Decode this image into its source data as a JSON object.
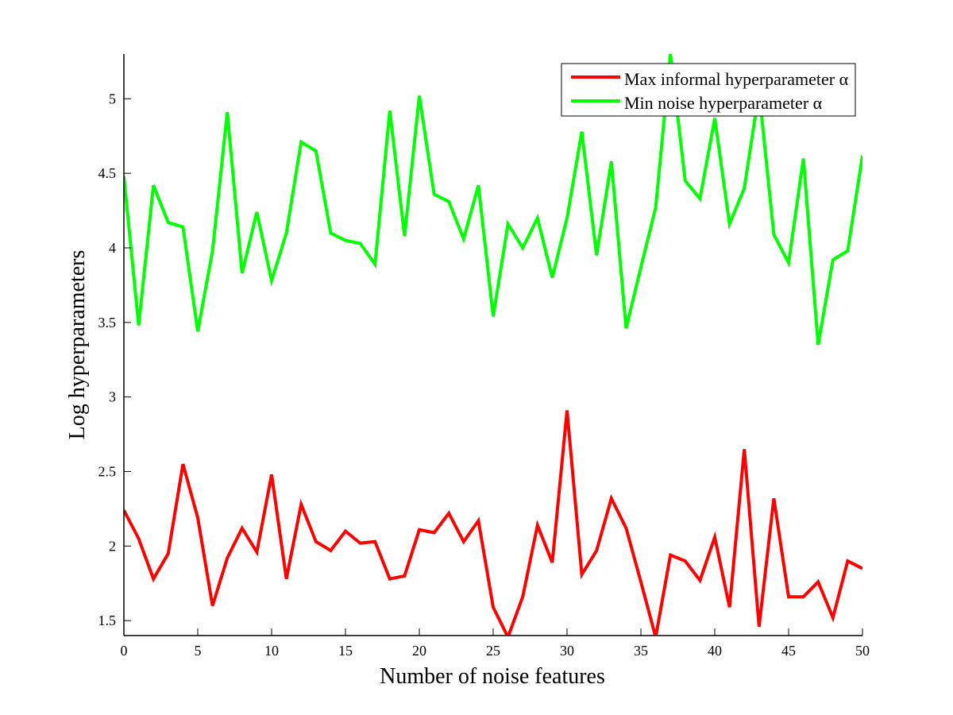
{
  "chart_data": {
    "type": "line",
    "title": "",
    "xlabel": "Number of noise features",
    "ylabel": "Log hyperparameters",
    "xlim": [
      0,
      50
    ],
    "ylim": [
      1.4,
      5.3
    ],
    "xticks": [
      0,
      5,
      10,
      15,
      20,
      25,
      30,
      35,
      40,
      45,
      50
    ],
    "yticks": [
      1.5,
      2,
      2.5,
      3,
      3.5,
      4,
      4.5,
      5
    ],
    "xtick_labels": [
      "0",
      "5",
      "10",
      "15",
      "20",
      "25",
      "30",
      "35",
      "40",
      "45",
      "50"
    ],
    "ytick_labels": [
      "1.5",
      "2",
      "2.5",
      "3",
      "3.5",
      "4",
      "4.5",
      "5"
    ],
    "grid": false,
    "legend_position": "top-right",
    "x": [
      0,
      1,
      2,
      3,
      4,
      5,
      6,
      7,
      8,
      9,
      10,
      11,
      12,
      13,
      14,
      15,
      16,
      17,
      18,
      19,
      20,
      21,
      22,
      23,
      24,
      25,
      26,
      27,
      28,
      29,
      30,
      31,
      32,
      33,
      34,
      35,
      36,
      37,
      38,
      39,
      40,
      41,
      42,
      43,
      44,
      45,
      46,
      47,
      48,
      49,
      50
    ],
    "series": [
      {
        "name": "Max informal hyperparameter α",
        "color": "#ff0000",
        "values": [
          2.24,
          2.05,
          1.78,
          1.95,
          2.55,
          2.19,
          1.6,
          1.92,
          2.12,
          1.96,
          2.48,
          1.78,
          2.28,
          2.03,
          1.97,
          2.1,
          2.02,
          2.03,
          1.78,
          1.8,
          2.11,
          2.09,
          2.22,
          2.03,
          2.17,
          1.59,
          1.39,
          1.66,
          2.14,
          1.89,
          2.91,
          1.81,
          1.97,
          2.32,
          2.12,
          1.76,
          1.39,
          1.94,
          1.9,
          1.77,
          2.06,
          1.59,
          2.65,
          1.46,
          2.32,
          1.66,
          1.66,
          1.76,
          1.52,
          1.9,
          1.85
        ]
      },
      {
        "name": "Min noise hyperparameter α",
        "color": "#00ff00",
        "values": [
          4.48,
          3.48,
          4.42,
          4.17,
          4.14,
          3.44,
          3.98,
          4.91,
          3.83,
          4.24,
          3.78,
          4.1,
          4.71,
          4.65,
          4.1,
          4.05,
          4.03,
          3.89,
          4.92,
          4.08,
          5.02,
          4.36,
          4.31,
          4.06,
          4.42,
          3.54,
          4.16,
          4.0,
          4.2,
          3.8,
          4.2,
          4.78,
          3.95,
          4.58,
          3.46,
          3.87,
          4.27,
          5.3,
          4.45,
          4.33,
          4.87,
          4.16,
          4.4,
          5.05,
          4.09,
          3.9,
          4.6,
          3.35,
          3.92,
          3.98,
          4.62
        ]
      }
    ]
  }
}
